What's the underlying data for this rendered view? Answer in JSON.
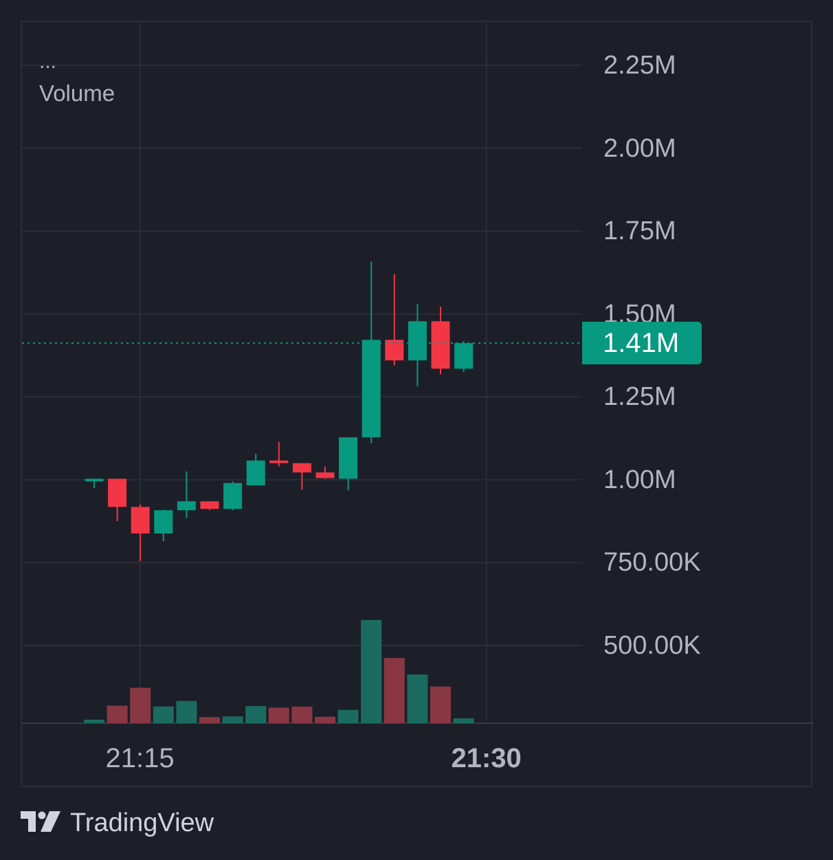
{
  "legend": {
    "dots": "...",
    "label": "Volume"
  },
  "watermark": {
    "text": "TradingView"
  },
  "last_value": {
    "label": "1.41M",
    "value": 1412000,
    "color": "#089981"
  },
  "colors": {
    "up": "#089981",
    "down": "#f23645",
    "up_volume": "#1b6b60",
    "down_volume": "#8a3744",
    "grid": "#2a2e39",
    "text": "#b2b5be"
  },
  "chart_data": {
    "type": "candlestick",
    "title": "",
    "series_name": "Volume",
    "y_range": [
      220000,
      2370000
    ],
    "y_ticks": [
      {
        "value": 2250000,
        "label": "2.25M"
      },
      {
        "value": 2000000,
        "label": "2.00M"
      },
      {
        "value": 1750000,
        "label": "1.75M"
      },
      {
        "value": 1500000,
        "label": "1.50M"
      },
      {
        "value": 1250000,
        "label": "1.25M"
      },
      {
        "value": 1000000,
        "label": "1.00M"
      },
      {
        "value": 750000,
        "label": "750.00K"
      },
      {
        "value": 500000,
        "label": "500.00K"
      }
    ],
    "x_ticks": [
      {
        "time": "21:15",
        "label": "21:15",
        "bold": false
      },
      {
        "time": "21:30",
        "label": "21:30",
        "bold": true
      }
    ],
    "candles": [
      {
        "time": "21:14",
        "open": 995000,
        "high": 1003000,
        "low": 975000,
        "close": 1003000,
        "volume": 18000
      },
      {
        "time": "21:15",
        "open": 1003000,
        "high": 1003000,
        "low": 875000,
        "close": 918000,
        "volume": 90000
      },
      {
        "time": "21:16",
        "open": 918000,
        "high": 925000,
        "low": 755000,
        "close": 838000,
        "volume": 182000
      },
      {
        "time": "21:17",
        "open": 838000,
        "high": 910000,
        "low": 815000,
        "close": 908000,
        "volume": 86000
      },
      {
        "time": "21:18",
        "open": 908000,
        "high": 1025000,
        "low": 885000,
        "close": 935000,
        "volume": 114000
      },
      {
        "time": "21:19",
        "open": 935000,
        "high": 935000,
        "low": 908000,
        "close": 912000,
        "volume": 31000
      },
      {
        "time": "21:20",
        "open": 912000,
        "high": 995000,
        "low": 908000,
        "close": 990000,
        "volume": 35000
      },
      {
        "time": "21:21",
        "open": 983000,
        "high": 1078000,
        "low": 983000,
        "close": 1058000,
        "volume": 88000
      },
      {
        "time": "21:22",
        "open": 1058000,
        "high": 1114000,
        "low": 1040000,
        "close": 1050000,
        "volume": 80000
      },
      {
        "time": "21:23",
        "open": 1050000,
        "high": 1050000,
        "low": 970000,
        "close": 1022000,
        "volume": 85000
      },
      {
        "time": "21:24",
        "open": 1022000,
        "high": 1040000,
        "low": 1003000,
        "close": 1005000,
        "volume": 33000
      },
      {
        "time": "21:25",
        "open": 1003000,
        "high": 1128000,
        "low": 968000,
        "close": 1128000,
        "volume": 68000
      },
      {
        "time": "21:26",
        "open": 1128000,
        "high": 1658000,
        "low": 1110000,
        "close": 1422000,
        "volume": 530000
      },
      {
        "time": "21:27",
        "open": 1422000,
        "high": 1620000,
        "low": 1345000,
        "close": 1360000,
        "volume": 335000
      },
      {
        "time": "21:28",
        "open": 1360000,
        "high": 1530000,
        "low": 1282000,
        "close": 1478000,
        "volume": 250000
      },
      {
        "time": "21:29",
        "open": 1478000,
        "high": 1522000,
        "low": 1318000,
        "close": 1335000,
        "volume": 188000
      },
      {
        "time": "21:30",
        "open": 1335000,
        "high": 1418000,
        "low": 1325000,
        "close": 1412000,
        "volume": 25000
      }
    ]
  }
}
